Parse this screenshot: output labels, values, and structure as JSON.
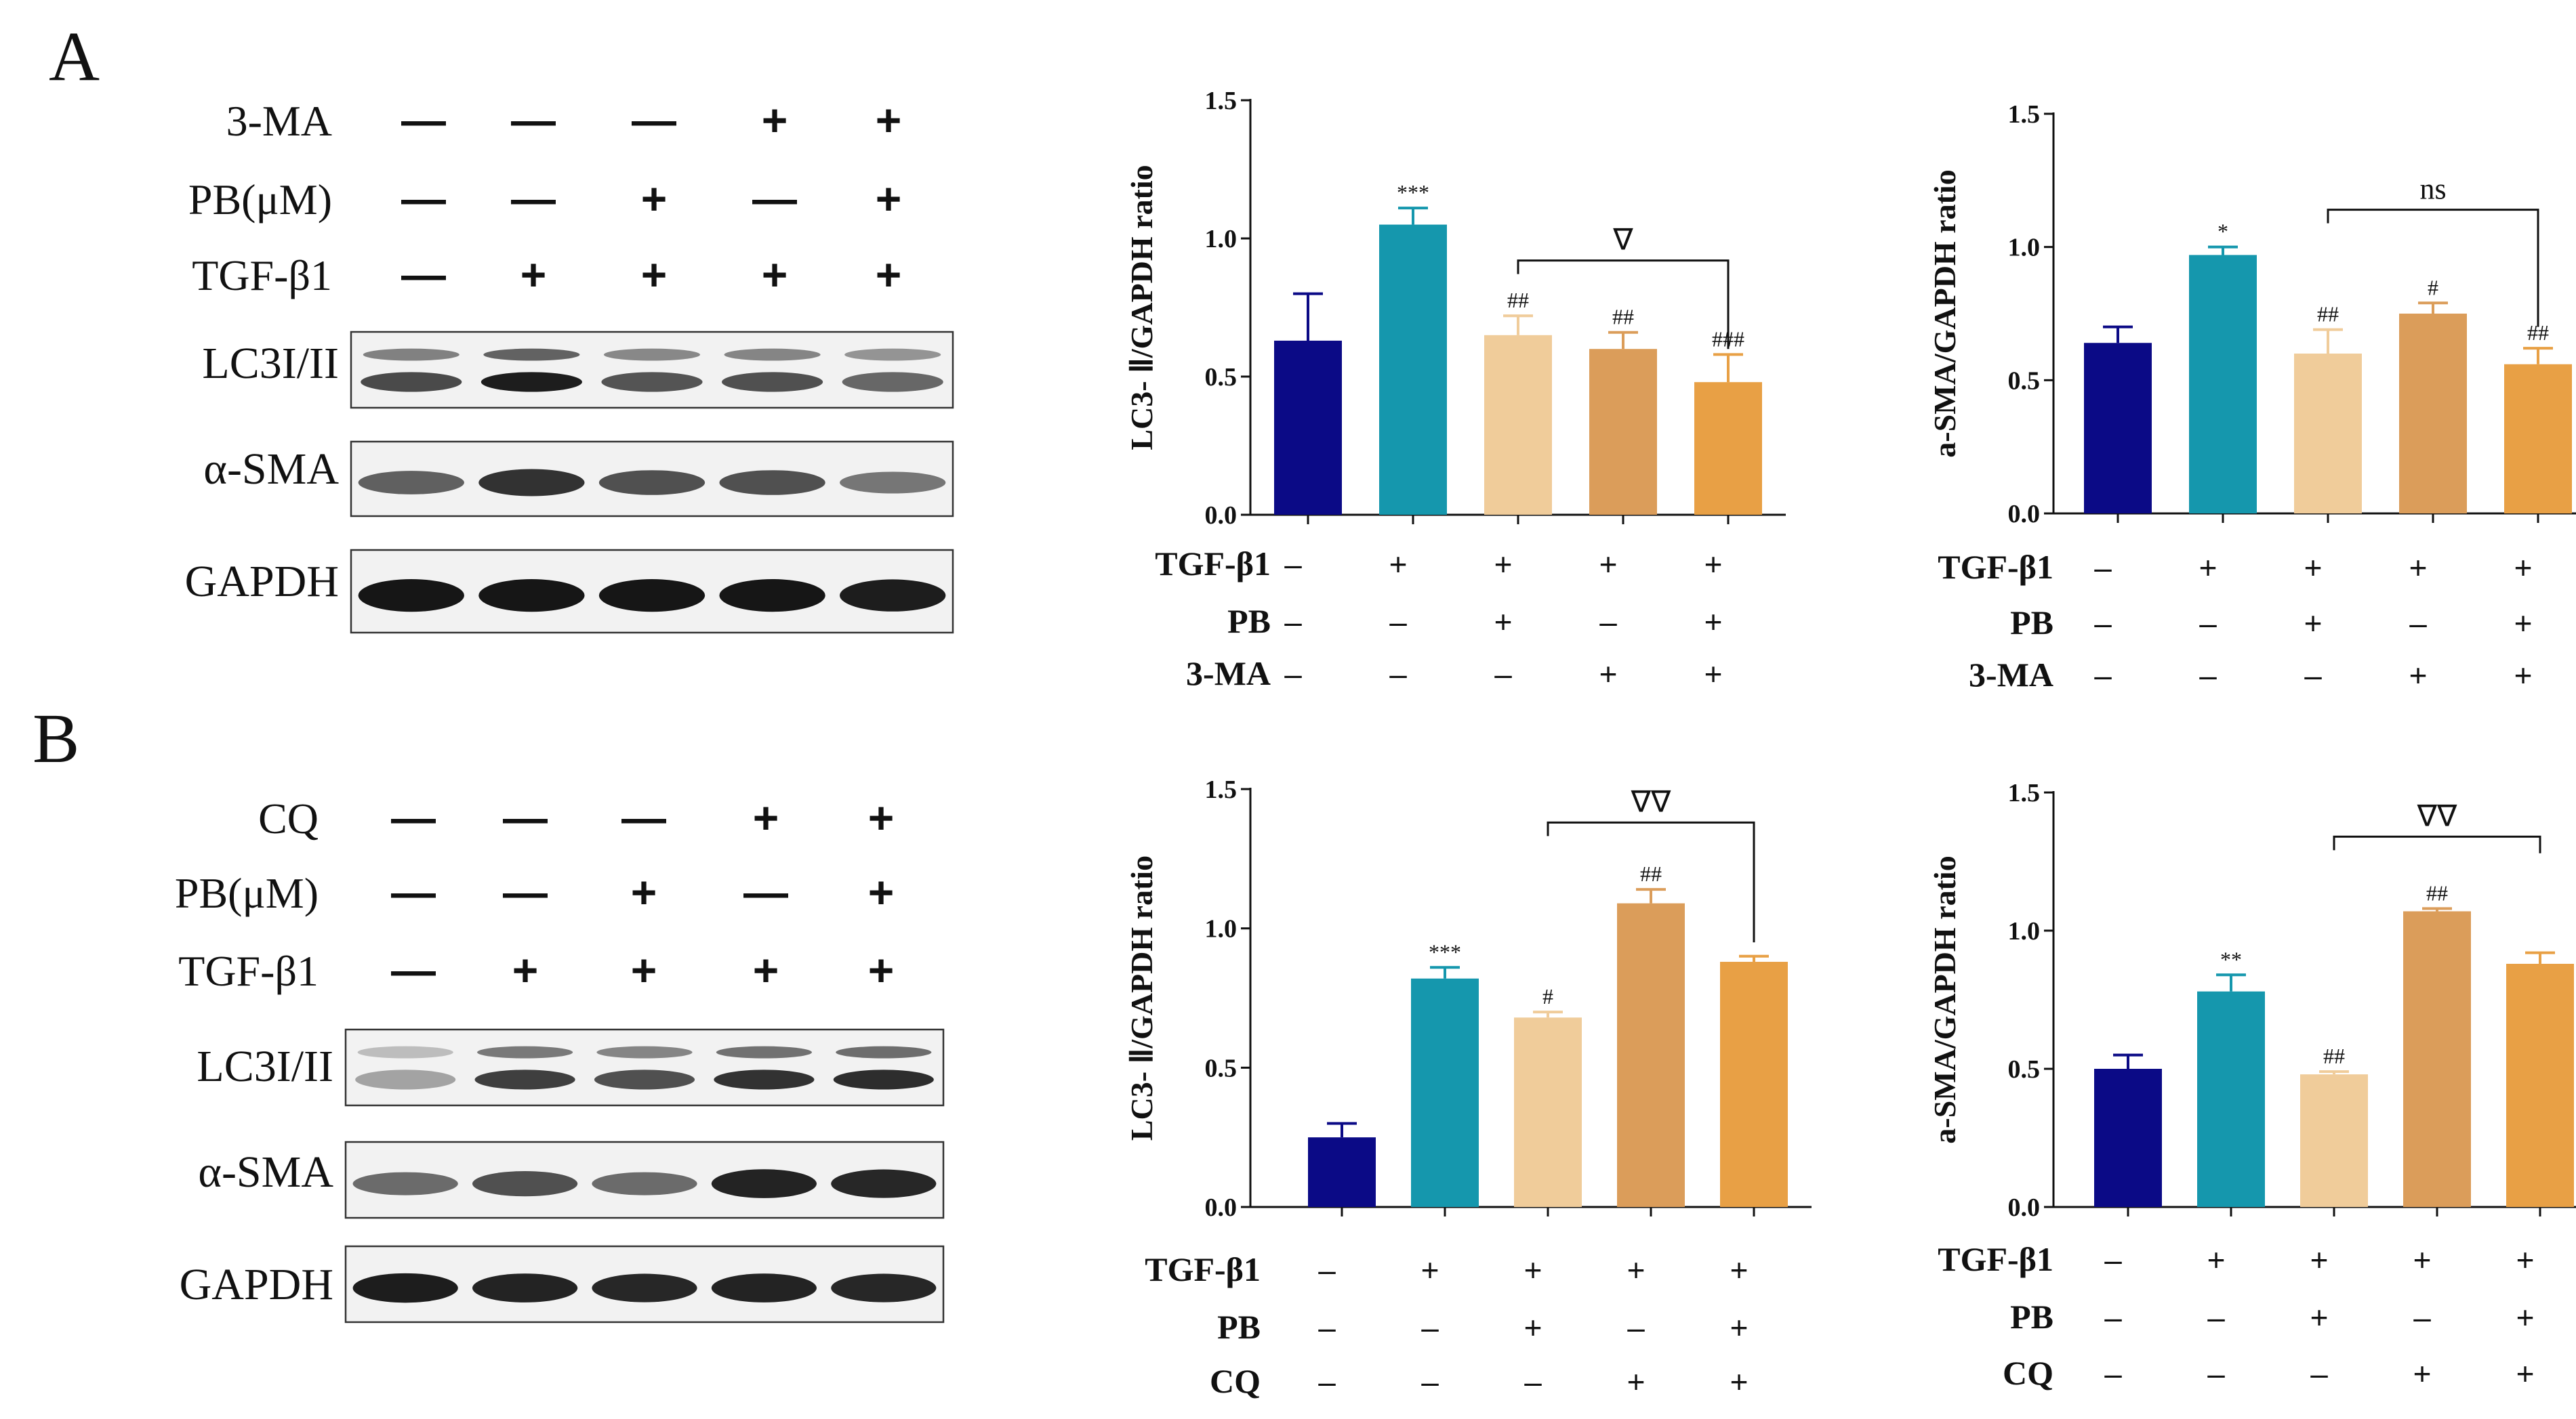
{
  "panels": [
    {
      "letter": "A",
      "blot": {
        "conditions": [
          {
            "label": "3-MA",
            "symbols": [
              "—",
              "—",
              "—",
              "+",
              "+"
            ]
          },
          {
            "label": "PB(μM)",
            "symbols": [
              "—",
              "—",
              "+",
              "—",
              "+"
            ]
          },
          {
            "label": "TGF-β1",
            "symbols": [
              "—",
              "+",
              "+",
              "+",
              "+"
            ]
          }
        ],
        "bands": [
          {
            "label": "LC3I/II",
            "double": true,
            "intensity": [
              0.75,
              0.95,
              0.7,
              0.72,
              0.62
            ]
          },
          {
            "label": "α-SMA",
            "double": false,
            "intensity": [
              0.65,
              0.85,
              0.72,
              0.72,
              0.55
            ]
          },
          {
            "label": "GAPDH",
            "double": false,
            "intensity": [
              0.98,
              0.98,
              0.98,
              0.98,
              0.95
            ]
          }
        ]
      }
    },
    {
      "letter": "B",
      "blot": {
        "conditions": [
          {
            "label": "CQ",
            "symbols": [
              "—",
              "—",
              "—",
              "+",
              "+"
            ]
          },
          {
            "label": "PB(μM)",
            "symbols": [
              "—",
              "—",
              "+",
              "—",
              "+"
            ]
          },
          {
            "label": "TGF-β1",
            "symbols": [
              "—",
              "+",
              "+",
              "+",
              "+"
            ]
          }
        ],
        "bands": [
          {
            "label": "LC3I/II",
            "double": true,
            "intensity": [
              0.35,
              0.8,
              0.72,
              0.85,
              0.88
            ]
          },
          {
            "label": "α-SMA",
            "double": false,
            "intensity": [
              0.6,
              0.72,
              0.6,
              0.92,
              0.9
            ]
          },
          {
            "label": "GAPDH",
            "double": false,
            "intensity": [
              0.95,
              0.92,
              0.9,
              0.92,
              0.9
            ]
          }
        ]
      }
    }
  ],
  "colors": [
    "#0b0a86",
    "#1597ad",
    "#f0cc9a",
    "#db9d5a",
    "#e8a045"
  ],
  "chart_data": [
    {
      "type": "bar",
      "ylabel": "LC3- Ⅱ/GAPDH ratio",
      "ylim": [
        0,
        1.5
      ],
      "yticks": [
        "0.0",
        "0.5",
        "1.0",
        "1.5"
      ],
      "values": [
        0.63,
        1.05,
        0.65,
        0.6,
        0.48
      ],
      "errors": [
        0.17,
        0.06,
        0.07,
        0.06,
        0.1
      ],
      "sig": [
        "",
        "***",
        "##",
        "##",
        "###"
      ],
      "bracket": {
        "from": 2,
        "to": 4,
        "label": "∇",
        "y": 0.92,
        "right_drop": 0.6
      },
      "conditions": [
        {
          "label": "TGF-β1",
          "symbols": [
            "–",
            "+",
            "+",
            "+",
            "+"
          ]
        },
        {
          "label": "PB",
          "symbols": [
            "–",
            "–",
            "+",
            "–",
            "+"
          ]
        },
        {
          "label": "3-MA",
          "symbols": [
            "–",
            "–",
            "–",
            "+",
            "+"
          ]
        }
      ]
    },
    {
      "type": "bar",
      "ylabel": "a-SMA/GAPDH ratio",
      "ylim": [
        0,
        1.5
      ],
      "yticks": [
        "0.0",
        "0.5",
        "1.0",
        "1.5"
      ],
      "values": [
        0.64,
        0.97,
        0.6,
        0.75,
        0.56
      ],
      "errors": [
        0.06,
        0.03,
        0.09,
        0.04,
        0.06
      ],
      "sig": [
        "",
        "*",
        "##",
        "#",
        "##"
      ],
      "bracket": {
        "from": 2,
        "to": 4,
        "label": "ns",
        "y": 1.14,
        "right_drop": 0.7
      },
      "conditions": [
        {
          "label": "TGF-β1",
          "symbols": [
            "–",
            "+",
            "+",
            "+",
            "+"
          ]
        },
        {
          "label": "PB",
          "symbols": [
            "–",
            "–",
            "+",
            "–",
            "+"
          ]
        },
        {
          "label": "3-MA",
          "symbols": [
            "–",
            "–",
            "–",
            "+",
            "+"
          ]
        }
      ]
    },
    {
      "type": "bar",
      "ylabel": "LC3- Ⅱ/GAPDH ratio",
      "ylim": [
        0,
        1.5
      ],
      "yticks": [
        "0.0",
        "0.5",
        "1.0",
        "1.5"
      ],
      "values": [
        0.25,
        0.82,
        0.68,
        1.09,
        0.88
      ],
      "errors": [
        0.05,
        0.04,
        0.02,
        0.05,
        0.02
      ],
      "sig": [
        "",
        "***",
        "#",
        "##",
        ""
      ],
      "bracket": {
        "from": 2,
        "to": 4,
        "label": "∇∇",
        "y": 1.38,
        "right_drop": 0.95
      },
      "conditions": [
        {
          "label": "TGF-β1",
          "symbols": [
            "–",
            "+",
            "+",
            "+",
            "+"
          ]
        },
        {
          "label": "PB",
          "symbols": [
            "–",
            "–",
            "+",
            "–",
            "+"
          ]
        },
        {
          "label": "CQ",
          "symbols": [
            "–",
            "–",
            "–",
            "+",
            "+"
          ]
        }
      ]
    },
    {
      "type": "bar",
      "ylabel": "a-SMA/GAPDH ratio",
      "ylim": [
        0,
        1.5
      ],
      "yticks": [
        "0.0",
        "0.5",
        "1.0",
        "1.5"
      ],
      "values": [
        0.5,
        0.78,
        0.48,
        1.07,
        0.88
      ],
      "errors": [
        0.05,
        0.06,
        0.01,
        0.01,
        0.04
      ],
      "sig": [
        "",
        "**",
        "##",
        "##",
        ""
      ],
      "bracket": {
        "from": 2,
        "to": 4,
        "label": "∇∇",
        "y": 1.34,
        "right_drop": 1.28
      },
      "conditions": [
        {
          "label": "TGF-β1",
          "symbols": [
            "–",
            "+",
            "+",
            "+",
            "+"
          ]
        },
        {
          "label": "PB",
          "symbols": [
            "–",
            "–",
            "+",
            "–",
            "+"
          ]
        },
        {
          "label": "CQ",
          "symbols": [
            "–",
            "–",
            "–",
            "+",
            "+"
          ]
        }
      ]
    }
  ]
}
